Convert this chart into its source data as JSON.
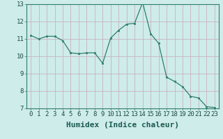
{
  "xlabel": "Humidex (Indice chaleur)",
  "x_values": [
    0,
    1,
    2,
    3,
    4,
    5,
    6,
    7,
    8,
    9,
    10,
    11,
    12,
    13,
    14,
    15,
    16,
    17,
    18,
    19,
    20,
    21,
    22,
    23
  ],
  "y_values": [
    11.2,
    11.0,
    11.15,
    11.15,
    10.9,
    10.2,
    10.15,
    10.2,
    10.2,
    9.6,
    11.05,
    11.5,
    11.85,
    11.9,
    13.1,
    11.3,
    10.75,
    8.8,
    8.55,
    8.25,
    7.7,
    7.6,
    7.1,
    7.05
  ],
  "ylim": [
    7,
    13
  ],
  "xlim": [
    -0.5,
    23.5
  ],
  "yticks": [
    7,
    8,
    9,
    10,
    11,
    12,
    13
  ],
  "xticks": [
    0,
    1,
    2,
    3,
    4,
    5,
    6,
    7,
    8,
    9,
    10,
    11,
    12,
    13,
    14,
    15,
    16,
    17,
    18,
    19,
    20,
    21,
    22,
    23
  ],
  "line_color": "#2e7d6e",
  "marker_color": "#2e7d6e",
  "bg_color": "#ceecea",
  "grid_color_v": "#c8a8b8",
  "grid_color_h": "#c8a8b8",
  "xlabel_fontsize": 8,
  "tick_fontsize": 6.5
}
